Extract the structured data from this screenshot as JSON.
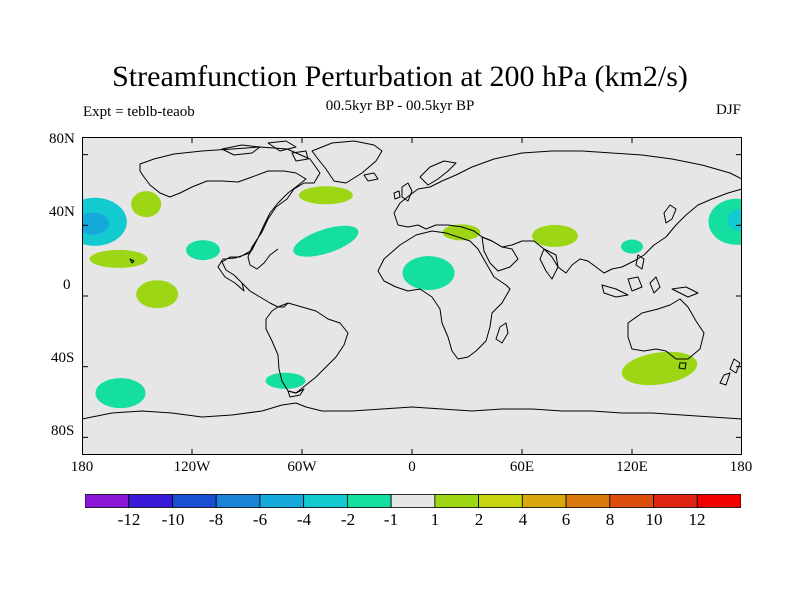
{
  "title": "Streamfunction Perturbation at 200 hPa (km2/s)",
  "left_string": "Expt = teblb-teaob",
  "center_string": "00.5kyr BP - 00.5kyr BP",
  "right_string": "DJF",
  "lat_ticks": [
    "80N",
    "40N",
    "0",
    "40S",
    "80S"
  ],
  "lon_ticks": [
    "180",
    "120W",
    "60W",
    "0",
    "60E",
    "120E",
    "180"
  ],
  "colorbar": {
    "labels": [
      "-12",
      "-10",
      "-8",
      "-6",
      "-4",
      "-2",
      "-1",
      "1",
      "2",
      "4",
      "6",
      "8",
      "10",
      "12"
    ],
    "colors": [
      "#8a17d8",
      "#3b19d8",
      "#1a4fd2",
      "#1983d8",
      "#15a9db",
      "#12cad0",
      "#14dfa0",
      "#e6e6e6",
      "#9cd614",
      "#c6d50f",
      "#d8a80e",
      "#da7a0e",
      "#dc4e0e",
      "#de2410",
      "#f00000"
    ]
  },
  "chart_data": {
    "type": "map",
    "projection": "cylindrical equidistant",
    "title": "Streamfunction Perturbation at 200 hPa (km2/s)",
    "lon_range": [
      -180,
      180
    ],
    "lat_range": [
      -90,
      90
    ],
    "levels": [
      -12,
      -10,
      -8,
      -6,
      -4,
      -2,
      -1,
      1,
      2,
      4,
      6,
      8,
      10,
      12
    ],
    "anomalies": [
      {
        "name": "north-pacific-west-low",
        "lon": -173,
        "lat": 42,
        "level_range": [
          -4,
          -1
        ]
      },
      {
        "name": "north-pacific-west-core",
        "lon": -174,
        "lat": 41,
        "level_range": [
          -6,
          -4
        ]
      },
      {
        "name": "north-pacific-high",
        "lon": -145,
        "lat": 52,
        "level_range": [
          1,
          2
        ]
      },
      {
        "name": "subtropical-pacific-high",
        "lon": -160,
        "lat": 21,
        "level_range": [
          1,
          2
        ]
      },
      {
        "name": "equatorial-pacific-high",
        "lon": -139,
        "lat": 1,
        "level_range": [
          1,
          2
        ]
      },
      {
        "name": "mexico-low",
        "lon": -114,
        "lat": 26,
        "level_range": [
          -2,
          -1
        ]
      },
      {
        "name": "north-atlantic-high",
        "lon": -47,
        "lat": 57,
        "level_range": [
          1,
          2
        ]
      },
      {
        "name": "central-atlantic-low",
        "lon": -47,
        "lat": 31,
        "level_range": [
          -2,
          -1
        ]
      },
      {
        "name": "west-africa-low",
        "lon": 9,
        "lat": 13,
        "level_range": [
          -2,
          -1
        ]
      },
      {
        "name": "mediterranean-high",
        "lon": 27,
        "lat": 36,
        "level_range": [
          1,
          2
        ]
      },
      {
        "name": "central-asia-high",
        "lon": 78,
        "lat": 34,
        "level_range": [
          1,
          2
        ]
      },
      {
        "name": "east-china-low",
        "lon": 120,
        "lat": 28,
        "level_range": [
          -2,
          -1
        ]
      },
      {
        "name": "north-pacific-east-low",
        "lon": 177,
        "lat": 42,
        "level_range": [
          -2,
          -1
        ]
      },
      {
        "name": "north-pacific-east-core",
        "lon": 179,
        "lat": 43,
        "level_range": [
          -4,
          -2
        ]
      },
      {
        "name": "southern-ocean-pacific-low",
        "lon": -159,
        "lat": -55,
        "level_range": [
          -2,
          -1
        ]
      },
      {
        "name": "patagonia-low",
        "lon": -69,
        "lat": -48,
        "level_range": [
          -2,
          -1
        ]
      },
      {
        "name": "south-of-australia-high",
        "lon": 135,
        "lat": -41,
        "level_range": [
          1,
          2
        ]
      }
    ]
  }
}
